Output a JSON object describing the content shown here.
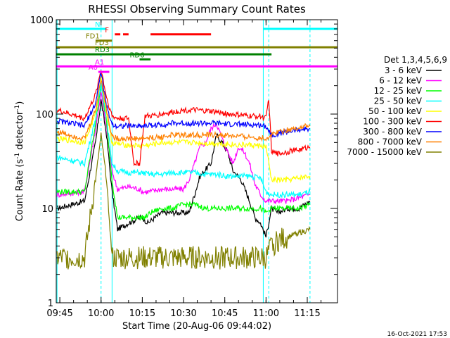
{
  "chart_data": {
    "type": "line",
    "title": "RHESSI Observing Summary Count Rates",
    "xlabel": "Start Time (20-Aug-06 09:44:02)",
    "ylabel_main": "Count Rate (s",
    "ylabel_sup1": "-1",
    "ylabel_mid": " detector",
    "ylabel_sup2": "-1",
    "ylabel_end": ")",
    "timestamp": "16-Oct-2021 17:53",
    "yscale": "log",
    "ylim": [
      1,
      1000
    ],
    "xlim_minutes": [
      -0.3,
      102
    ],
    "x_ticks": [
      {
        "label": "09:45",
        "min": 1
      },
      {
        "label": "10:00",
        "min": 16
      },
      {
        "label": "10:15",
        "min": 31
      },
      {
        "label": "10:30",
        "min": 46
      },
      {
        "label": "10:45",
        "min": 61
      },
      {
        "label": "11:00",
        "min": 76
      },
      {
        "label": "11:15",
        "min": 91
      }
    ],
    "y_ticks": [
      {
        "label": "1",
        "value": 1
      },
      {
        "label": "10",
        "value": 10
      },
      {
        "label": "100",
        "value": 100
      },
      {
        "label": "1000",
        "value": 1000
      }
    ],
    "legend_title": "Det 1,3,4,5,6,9",
    "legend_position": "right",
    "series": [
      {
        "name": "3 - 6 keV",
        "color": "#000000",
        "points": [
          [
            0,
            10
          ],
          [
            10,
            12
          ],
          [
            14,
            50
          ],
          [
            16,
            140
          ],
          [
            18,
            60
          ],
          [
            20,
            15
          ],
          [
            22,
            6
          ],
          [
            26,
            7
          ],
          [
            30,
            8
          ],
          [
            31,
            8
          ],
          [
            33,
            7
          ],
          [
            38,
            9
          ],
          [
            42,
            9
          ],
          [
            46,
            9
          ],
          [
            48,
            9
          ],
          [
            50,
            14
          ],
          [
            52,
            22
          ],
          [
            56,
            30
          ],
          [
            58,
            60
          ],
          [
            60,
            50
          ],
          [
            62,
            40
          ],
          [
            64,
            25
          ],
          [
            67,
            20
          ],
          [
            70,
            12
          ],
          [
            72,
            8
          ],
          [
            74,
            7
          ],
          [
            76,
            5
          ],
          [
            78,
            10
          ],
          [
            80,
            9
          ],
          [
            84,
            10
          ],
          [
            88,
            10
          ],
          [
            92,
            12
          ]
        ]
      },
      {
        "name": "6 - 12 keV",
        "color": "#ff00ff",
        "points": [
          [
            0,
            14
          ],
          [
            10,
            15
          ],
          [
            14,
            70
          ],
          [
            16,
            170
          ],
          [
            18,
            70
          ],
          [
            20,
            25
          ],
          [
            22,
            16
          ],
          [
            26,
            17
          ],
          [
            30,
            16
          ],
          [
            31,
            15
          ],
          [
            33,
            15
          ],
          [
            38,
            16
          ],
          [
            42,
            16
          ],
          [
            46,
            16
          ],
          [
            48,
            20
          ],
          [
            50,
            30
          ],
          [
            52,
            45
          ],
          [
            54,
            50
          ],
          [
            56,
            70
          ],
          [
            58,
            80
          ],
          [
            60,
            55
          ],
          [
            62,
            40
          ],
          [
            64,
            30
          ],
          [
            66,
            45
          ],
          [
            68,
            40
          ],
          [
            70,
            30
          ],
          [
            72,
            18
          ],
          [
            74,
            14
          ],
          [
            76,
            12
          ],
          [
            78,
            12
          ],
          [
            80,
            12
          ],
          [
            84,
            12
          ],
          [
            88,
            13
          ],
          [
            92,
            14
          ]
        ]
      },
      {
        "name": "12 - 25 keV",
        "color": "#00ff00",
        "points": [
          [
            0,
            15
          ],
          [
            10,
            15
          ],
          [
            14,
            80
          ],
          [
            16,
            210
          ],
          [
            18,
            80
          ],
          [
            20,
            20
          ],
          [
            22,
            8
          ],
          [
            26,
            8
          ],
          [
            30,
            8
          ],
          [
            32,
            8
          ],
          [
            34,
            9
          ],
          [
            38,
            10
          ],
          [
            42,
            10
          ],
          [
            46,
            11
          ],
          [
            50,
            11
          ],
          [
            54,
            10
          ],
          [
            58,
            10
          ],
          [
            62,
            10
          ],
          [
            66,
            10
          ],
          [
            70,
            10
          ],
          [
            74,
            10
          ],
          [
            76,
            9
          ],
          [
            78,
            10
          ],
          [
            80,
            10
          ],
          [
            84,
            10
          ],
          [
            88,
            10
          ],
          [
            92,
            11
          ]
        ]
      },
      {
        "name": "25 - 50 keV",
        "color": "#00ffff",
        "points": [
          [
            0,
            35
          ],
          [
            10,
            30
          ],
          [
            14,
            90
          ],
          [
            16,
            220
          ],
          [
            18,
            90
          ],
          [
            20,
            30
          ],
          [
            22,
            25
          ],
          [
            26,
            24
          ],
          [
            30,
            24
          ],
          [
            34,
            23
          ],
          [
            38,
            23
          ],
          [
            42,
            24
          ],
          [
            46,
            24
          ],
          [
            50,
            24
          ],
          [
            54,
            23
          ],
          [
            58,
            23
          ],
          [
            62,
            22
          ],
          [
            66,
            22
          ],
          [
            70,
            22
          ],
          [
            74,
            21
          ],
          [
            76,
            15
          ],
          [
            78,
            14
          ],
          [
            80,
            14
          ],
          [
            84,
            14
          ],
          [
            88,
            14
          ],
          [
            92,
            15
          ]
        ]
      },
      {
        "name": "50 - 100 keV",
        "color": "#ffff00",
        "points": [
          [
            0,
            55
          ],
          [
            10,
            50
          ],
          [
            14,
            100
          ],
          [
            16,
            260
          ],
          [
            18,
            100
          ],
          [
            20,
            50
          ],
          [
            22,
            48
          ],
          [
            26,
            47
          ],
          [
            30,
            46
          ],
          [
            34,
            47
          ],
          [
            38,
            50
          ],
          [
            42,
            50
          ],
          [
            46,
            50
          ],
          [
            50,
            50
          ],
          [
            54,
            49
          ],
          [
            58,
            49
          ],
          [
            62,
            48
          ],
          [
            66,
            47
          ],
          [
            70,
            47
          ],
          [
            74,
            46
          ],
          [
            76,
            45
          ],
          [
            78,
            20
          ],
          [
            80,
            20
          ],
          [
            84,
            20
          ],
          [
            88,
            21
          ],
          [
            92,
            22
          ]
        ]
      },
      {
        "name": "100 - 300 keV",
        "color": "#ff0000",
        "points": [
          [
            0,
            110
          ],
          [
            10,
            90
          ],
          [
            14,
            160
          ],
          [
            16,
            300
          ],
          [
            18,
            150
          ],
          [
            20,
            95
          ],
          [
            22,
            90
          ],
          [
            26,
            90
          ],
          [
            28,
            30
          ],
          [
            30,
            30
          ],
          [
            32,
            95
          ],
          [
            34,
            95
          ],
          [
            38,
            100
          ],
          [
            42,
            105
          ],
          [
            46,
            110
          ],
          [
            50,
            110
          ],
          [
            54,
            108
          ],
          [
            58,
            105
          ],
          [
            62,
            100
          ],
          [
            66,
            98
          ],
          [
            70,
            95
          ],
          [
            74,
            95
          ],
          [
            76,
            90
          ],
          [
            77,
            150
          ],
          [
            78,
            40
          ],
          [
            80,
            38
          ],
          [
            84,
            40
          ],
          [
            88,
            42
          ],
          [
            92,
            45
          ]
        ]
      },
      {
        "name": "300 - 800 keV",
        "color": "#0000ff",
        "points": [
          [
            0,
            85
          ],
          [
            10,
            75
          ],
          [
            14,
            130
          ],
          [
            16,
            280
          ],
          [
            18,
            120
          ],
          [
            20,
            78
          ],
          [
            22,
            75
          ],
          [
            26,
            75
          ],
          [
            30,
            75
          ],
          [
            34,
            76
          ],
          [
            38,
            77
          ],
          [
            42,
            80
          ],
          [
            46,
            80
          ],
          [
            50,
            80
          ],
          [
            54,
            80
          ],
          [
            58,
            80
          ],
          [
            62,
            78
          ],
          [
            66,
            78
          ],
          [
            70,
            77
          ],
          [
            74,
            76
          ],
          [
            76,
            75
          ],
          [
            78,
            60
          ],
          [
            80,
            62
          ],
          [
            84,
            65
          ],
          [
            88,
            68
          ],
          [
            92,
            70
          ]
        ]
      },
      {
        "name": "800 - 7000 keV",
        "color": "#ff8000",
        "points": [
          [
            0,
            65
          ],
          [
            10,
            55
          ],
          [
            14,
            110
          ],
          [
            16,
            240
          ],
          [
            18,
            110
          ],
          [
            20,
            58
          ],
          [
            22,
            55
          ],
          [
            26,
            55
          ],
          [
            30,
            55
          ],
          [
            34,
            56
          ],
          [
            38,
            57
          ],
          [
            42,
            60
          ],
          [
            46,
            60
          ],
          [
            50,
            60
          ],
          [
            54,
            60
          ],
          [
            58,
            60
          ],
          [
            62,
            59
          ],
          [
            66,
            58
          ],
          [
            70,
            57
          ],
          [
            74,
            56
          ],
          [
            76,
            55
          ],
          [
            78,
            60
          ],
          [
            80,
            65
          ],
          [
            84,
            68
          ],
          [
            88,
            72
          ],
          [
            92,
            75
          ]
        ]
      },
      {
        "name": "7000 - 15000 keV",
        "color": "#808000",
        "points": [
          [
            0,
            3
          ],
          [
            10,
            3
          ],
          [
            14,
            20
          ],
          [
            16,
            60
          ],
          [
            18,
            20
          ],
          [
            20,
            3
          ],
          [
            22,
            3
          ],
          [
            26,
            3
          ],
          [
            30,
            3
          ],
          [
            34,
            3
          ],
          [
            38,
            3
          ],
          [
            42,
            3
          ],
          [
            46,
            3
          ],
          [
            50,
            3
          ],
          [
            54,
            3
          ],
          [
            58,
            3
          ],
          [
            62,
            3
          ],
          [
            66,
            3
          ],
          [
            70,
            3
          ],
          [
            74,
            3
          ],
          [
            76,
            3
          ],
          [
            78,
            4
          ],
          [
            80,
            4.5
          ],
          [
            84,
            5
          ],
          [
            88,
            5.5
          ],
          [
            92,
            6
          ]
        ]
      }
    ],
    "flag_bars": [
      {
        "label": "N",
        "color": "#00ffff",
        "segments": [
          [
            -0.3,
            18
          ],
          [
            75,
            102
          ]
        ],
        "y_value": 800
      },
      {
        "label": "F",
        "color": "#ff0000",
        "segments": [
          [
            21,
            23
          ],
          [
            24,
            26
          ],
          [
            34,
            56
          ]
        ],
        "y_value": 700
      },
      {
        "label": "FD1",
        "color": "#808000",
        "segments": [
          [
            14,
            20
          ]
        ],
        "y_value": 600
      },
      {
        "label": "FD3",
        "color": "#808000",
        "segments": [
          [
            -0.3,
            102
          ]
        ],
        "y_value": 510
      },
      {
        "label": "RD3",
        "color": "#008000",
        "segments": [
          [
            -0.3,
            78
          ]
        ],
        "y_value": 430
      },
      {
        "label": "RD6",
        "color": "#008000",
        "segments": [
          [
            30,
            34
          ]
        ],
        "y_value": 380
      },
      {
        "label": "A1",
        "color": "#ff00ff",
        "segments": [
          [
            -0.3,
            102
          ]
        ],
        "y_value": 320
      },
      {
        "label": "A0",
        "color": "#ff00ff",
        "segments": [
          [
            15,
            19
          ]
        ],
        "y_value": 280
      }
    ],
    "vertical_lines": [
      {
        "min": 0,
        "color": "#00ffff",
        "style": "solid"
      },
      {
        "min": 16,
        "color": "#00ffff",
        "style": "dashed"
      },
      {
        "min": 20,
        "color": "#00ffff",
        "style": "solid"
      },
      {
        "min": 75,
        "color": "#00ffff",
        "style": "solid"
      },
      {
        "min": 77,
        "color": "#00ffff",
        "style": "dashed"
      },
      {
        "min": 92,
        "color": "#00ffff",
        "style": "dashed"
      }
    ]
  }
}
